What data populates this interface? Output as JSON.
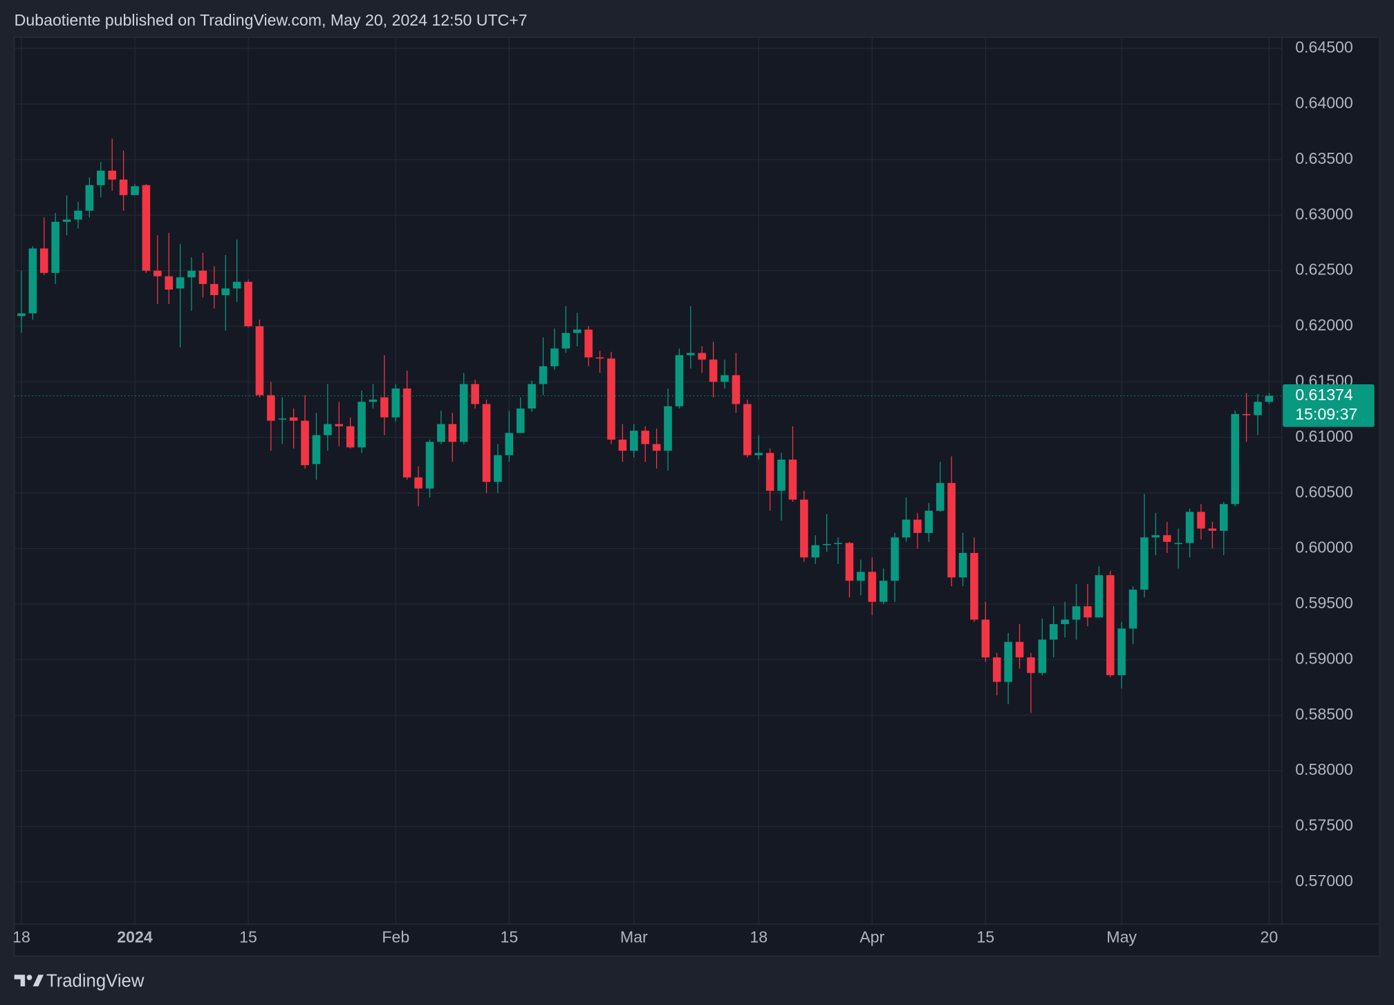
{
  "chart_data": {
    "type": "candlestick",
    "title": "Dubaotiente published on TradingView.com, May 20, 2024 12:50 UTC+7",
    "brand": "TradingView",
    "categories": [
      "18",
      null,
      null,
      null,
      null,
      null,
      null,
      null,
      null,
      null,
      "2024",
      null,
      null,
      null,
      null,
      null,
      null,
      null,
      null,
      null,
      "15",
      null,
      null,
      null,
      null,
      null,
      null,
      null,
      null,
      null,
      null,
      null,
      null,
      "Feb",
      null,
      null,
      null,
      null,
      null,
      null,
      null,
      null,
      null,
      "15",
      null,
      null,
      null,
      null,
      null,
      null,
      null,
      null,
      null,
      null,
      "Mar",
      null,
      null,
      null,
      null,
      null,
      null,
      null,
      null,
      null,
      null,
      "18",
      null,
      null,
      null,
      null,
      null,
      null,
      null,
      null,
      null,
      "Apr",
      null,
      null,
      null,
      null,
      null,
      null,
      null,
      null,
      null,
      "15",
      null,
      null,
      null,
      null,
      null,
      null,
      null,
      null,
      null,
      null,
      null,
      "May",
      null,
      null,
      null,
      null,
      null,
      null,
      null,
      null,
      null,
      null,
      null,
      null,
      "20"
    ],
    "open": [
      0.62092,
      0.62116,
      0.627,
      0.6248,
      0.6294,
      0.6296,
      0.6304,
      0.6327,
      0.634,
      0.6332,
      0.6318,
      0.6327,
      0.625,
      0.6245,
      0.6234,
      0.6244,
      0.625,
      0.6238,
      0.6228,
      0.6234,
      0.624,
      0.62,
      0.6138,
      0.6116,
      0.6118,
      0.6115,
      0.6076,
      0.6102,
      0.6112,
      0.611,
      0.6091,
      0.6132,
      0.6136,
      0.6118,
      0.6144,
      0.6064,
      0.6054,
      0.6096,
      0.6112,
      0.6096,
      0.6148,
      0.613,
      0.606,
      0.6084,
      0.6104,
      0.6126,
      0.6148,
      0.6164,
      0.618,
      0.6194,
      0.6197,
      0.6172,
      0.6171,
      0.6098,
      0.6088,
      0.6106,
      0.6094,
      0.6088,
      0.6128,
      0.6174,
      0.6176,
      0.617,
      0.615,
      0.6156,
      0.613,
      0.6084,
      0.6086,
      0.6052,
      0.608,
      0.6044,
      0.5992,
      0.6003,
      0.6004,
      0.6005,
      0.5971,
      0.5979,
      0.5952,
      0.5971,
      0.601,
      0.6026,
      0.6014,
      0.6034,
      0.6059,
      0.5974,
      0.5996,
      0.5936,
      0.5902,
      0.588,
      0.5916,
      0.5902,
      0.5888,
      0.5918,
      0.5932,
      0.5936,
      0.5948,
      0.5938,
      0.5976,
      0.5886,
      0.5928,
      0.5963,
      0.601,
      0.6012,
      0.6004,
      0.6005,
      0.6033,
      0.6018,
      0.6016,
      0.604,
      0.6121,
      0.612,
      0.6132
    ],
    "high": [
      0.625,
      0.6272,
      0.6298,
      0.6302,
      0.6318,
      0.6312,
      0.6334,
      0.6348,
      0.6369,
      0.6358,
      0.6328,
      0.6328,
      0.6282,
      0.6284,
      0.6274,
      0.6262,
      0.6266,
      0.6254,
      0.6264,
      0.6278,
      0.6242,
      0.6206,
      0.615,
      0.6136,
      0.6126,
      0.6138,
      0.6122,
      0.6148,
      0.6132,
      0.6118,
      0.6142,
      0.6148,
      0.6174,
      0.6148,
      0.616,
      0.6074,
      0.6098,
      0.6124,
      0.6122,
      0.6158,
      0.6152,
      0.6134,
      0.6094,
      0.6124,
      0.6136,
      0.6151,
      0.619,
      0.6198,
      0.6218,
      0.6212,
      0.62,
      0.6178,
      0.6177,
      0.6112,
      0.6112,
      0.611,
      0.6108,
      0.6144,
      0.618,
      0.6218,
      0.6182,
      0.6186,
      0.617,
      0.6176,
      0.6134,
      0.6102,
      0.609,
      0.6086,
      0.611,
      0.6052,
      0.6012,
      0.6031,
      0.601,
      0.6006,
      0.599,
      0.5992,
      0.5982,
      0.6014,
      0.6046,
      0.6032,
      0.6041,
      0.6078,
      0.6083,
      0.6014,
      0.601,
      0.5952,
      0.5906,
      0.5924,
      0.5932,
      0.5906,
      0.5937,
      0.5948,
      0.5952,
      0.5968,
      0.5968,
      0.5984,
      0.598,
      0.5934,
      0.5966,
      0.6049,
      0.6032,
      0.6024,
      0.6018,
      0.6036,
      0.604,
      0.6024,
      0.6042,
      0.6124,
      0.614,
      0.6139,
      0.614
    ],
    "low": [
      0.6194,
      0.6206,
      0.6246,
      0.6238,
      0.6282,
      0.6288,
      0.6298,
      0.6316,
      0.6322,
      0.6304,
      0.6318,
      0.6248,
      0.622,
      0.622,
      0.6181,
      0.6214,
      0.6226,
      0.6216,
      0.6196,
      0.6222,
      0.6199,
      0.6136,
      0.6088,
      0.6094,
      0.609,
      0.6072,
      0.6062,
      0.6088,
      0.6092,
      0.609,
      0.6086,
      0.6126,
      0.6102,
      0.6114,
      0.6062,
      0.6038,
      0.6046,
      0.6094,
      0.6078,
      0.6094,
      0.6126,
      0.605,
      0.605,
      0.6078,
      0.6104,
      0.6123,
      0.6138,
      0.6161,
      0.6176,
      0.6182,
      0.6164,
      0.6158,
      0.6094,
      0.6078,
      0.6082,
      0.6078,
      0.6072,
      0.607,
      0.6126,
      0.6162,
      0.6158,
      0.6136,
      0.6144,
      0.6122,
      0.6082,
      0.608,
      0.6034,
      0.6025,
      0.6042,
      0.5988,
      0.5986,
      0.5997,
      0.5986,
      0.5956,
      0.5958,
      0.594,
      0.595,
      0.5952,
      0.6006,
      0.6,
      0.6006,
      0.6033,
      0.5966,
      0.5966,
      0.5934,
      0.5898,
      0.5868,
      0.586,
      0.5892,
      0.5852,
      0.5886,
      0.5902,
      0.592,
      0.5918,
      0.593,
      0.5938,
      0.5884,
      0.5874,
      0.5914,
      0.5956,
      0.5994,
      0.5996,
      0.5982,
      0.5992,
      0.6008,
      0.6,
      0.5994,
      0.6038,
      0.6096,
      0.6102,
      0.613
    ],
    "close": [
      0.62116,
      0.627,
      0.6248,
      0.6294,
      0.6296,
      0.6304,
      0.6327,
      0.634,
      0.6332,
      0.6318,
      0.6326,
      0.625,
      0.6245,
      0.6233,
      0.6244,
      0.625,
      0.6238,
      0.6228,
      0.6234,
      0.624,
      0.62,
      0.6138,
      0.6115,
      0.6117,
      0.6115,
      0.6075,
      0.6102,
      0.6112,
      0.611,
      0.6091,
      0.6132,
      0.6134,
      0.6118,
      0.6144,
      0.6064,
      0.6054,
      0.6096,
      0.6112,
      0.6096,
      0.6148,
      0.613,
      0.606,
      0.6084,
      0.6104,
      0.6126,
      0.6148,
      0.6164,
      0.618,
      0.6194,
      0.6197,
      0.6172,
      0.6171,
      0.6098,
      0.6088,
      0.6106,
      0.6094,
      0.6088,
      0.6128,
      0.6174,
      0.6176,
      0.617,
      0.615,
      0.6156,
      0.613,
      0.6084,
      0.6086,
      0.6052,
      0.608,
      0.6044,
      0.5992,
      0.6003,
      0.6004,
      0.6005,
      0.5971,
      0.5979,
      0.5952,
      0.5971,
      0.601,
      0.6026,
      0.6014,
      0.6034,
      0.6059,
      0.5974,
      0.5996,
      0.5936,
      0.5902,
      0.588,
      0.5916,
      0.5902,
      0.5888,
      0.5918,
      0.5932,
      0.5936,
      0.5948,
      0.5938,
      0.5976,
      0.5886,
      0.5928,
      0.5963,
      0.601,
      0.6012,
      0.6006,
      0.6005,
      0.6033,
      0.6018,
      0.6016,
      0.604,
      0.6121,
      0.612,
      0.6132,
      0.61374
    ],
    "up_color": "#089981",
    "down_color": "#f23645",
    "ylim": [
      0.5662,
      0.646
    ],
    "yticks": [
      {
        "value": 0.645,
        "label": "0.64500"
      },
      {
        "value": 0.64,
        "label": "0.64000"
      },
      {
        "value": 0.635,
        "label": "0.63500"
      },
      {
        "value": 0.63,
        "label": "0.63000"
      },
      {
        "value": 0.625,
        "label": "0.62500"
      },
      {
        "value": 0.62,
        "label": "0.62000"
      },
      {
        "value": 0.615,
        "label": "0.61500"
      },
      {
        "value": 0.61,
        "label": "0.61000"
      },
      {
        "value": 0.605,
        "label": "0.60500"
      },
      {
        "value": 0.6,
        "label": "0.60000"
      },
      {
        "value": 0.595,
        "label": "0.59500"
      },
      {
        "value": 0.59,
        "label": "0.59000"
      },
      {
        "value": 0.585,
        "label": "0.58500"
      },
      {
        "value": 0.58,
        "label": "0.58000"
      },
      {
        "value": 0.575,
        "label": "0.57500"
      },
      {
        "value": 0.57,
        "label": "0.57000"
      }
    ],
    "grid": true,
    "last_price": 0.61374,
    "countdown": "15:09:37"
  }
}
